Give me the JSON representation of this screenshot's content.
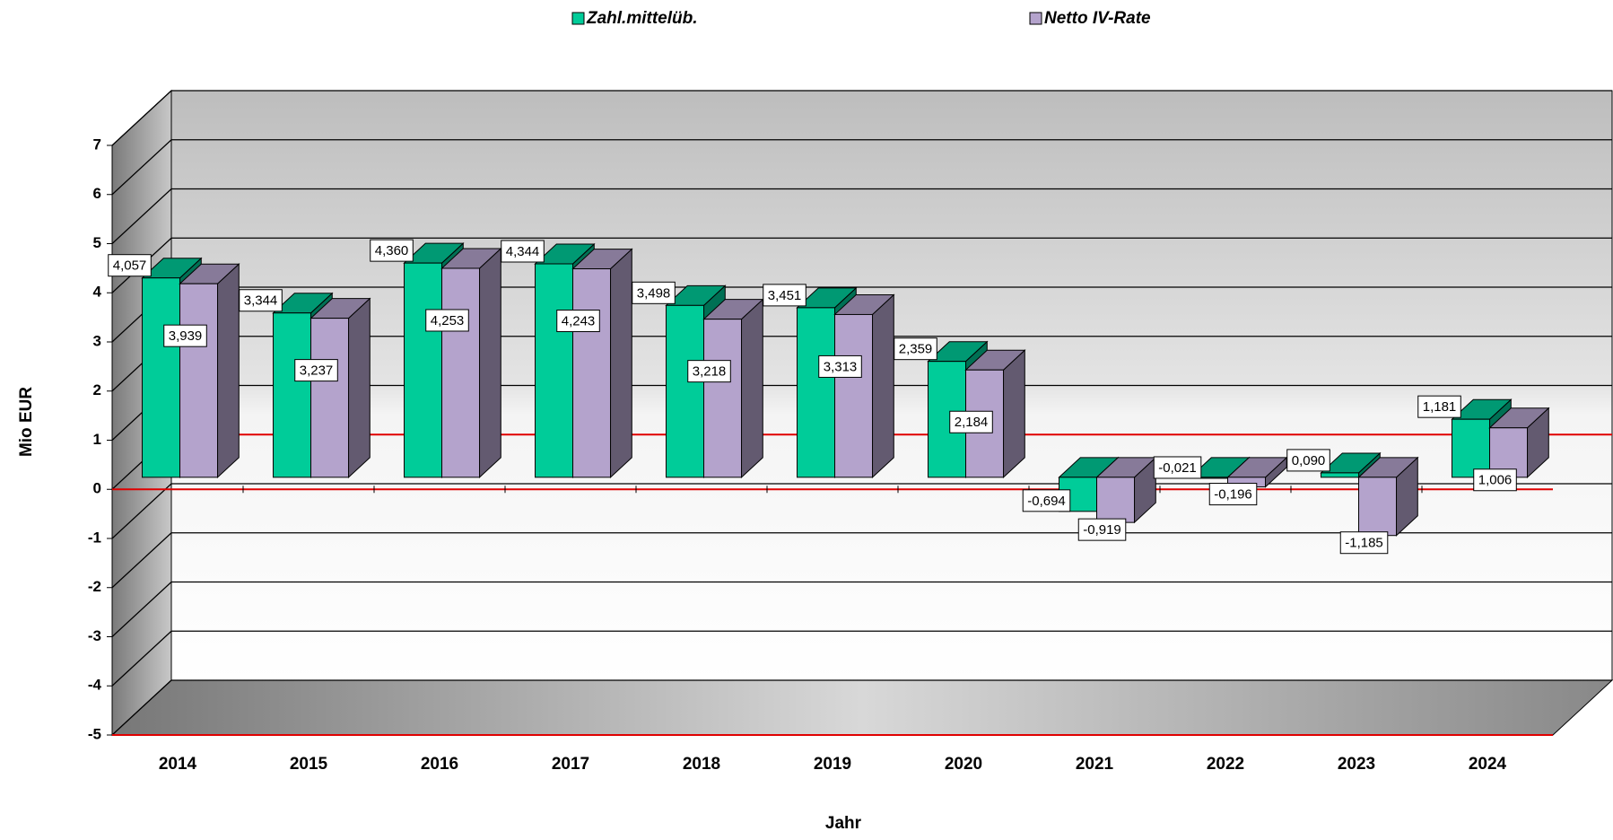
{
  "chart_data": {
    "type": "bar3d",
    "categories": [
      "2014",
      "2015",
      "2016",
      "2017",
      "2018",
      "2019",
      "2020",
      "2021",
      "2022",
      "2023",
      "2024"
    ],
    "series": [
      {
        "name": "Zahl.mittelüb.",
        "color": "#00cc99",
        "values": [
          4.057,
          3.344,
          4.36,
          4.344,
          3.498,
          3.451,
          2.359,
          -0.694,
          -0.021,
          0.09,
          1.181
        ],
        "value_labels": [
          "4,057",
          "3,344",
          "4,360",
          "4,344",
          "3,498",
          "3,451",
          "2,359",
          "-0,694",
          "-0,021",
          "0,090",
          "1,181"
        ]
      },
      {
        "name": "Netto IV-Rate",
        "color": "#b4a3cc",
        "values": [
          3.939,
          3.237,
          4.253,
          4.243,
          3.218,
          3.313,
          2.184,
          -0.919,
          -0.196,
          -1.185,
          1.006
        ],
        "value_labels": [
          "3,939",
          "3,237",
          "4,253",
          "4,243",
          "3,218",
          "3,313",
          "2,184",
          "-0,919",
          "-0,196",
          "-1,185",
          "1,006"
        ]
      }
    ],
    "ylim": [
      -5,
      7
    ],
    "yticks": [
      -5,
      -4,
      -3,
      -2,
      -1,
      0,
      1,
      2,
      3,
      4,
      5,
      6,
      7
    ],
    "y_label": "Mio EUR",
    "x_label": "Jahr",
    "grid": true
  }
}
